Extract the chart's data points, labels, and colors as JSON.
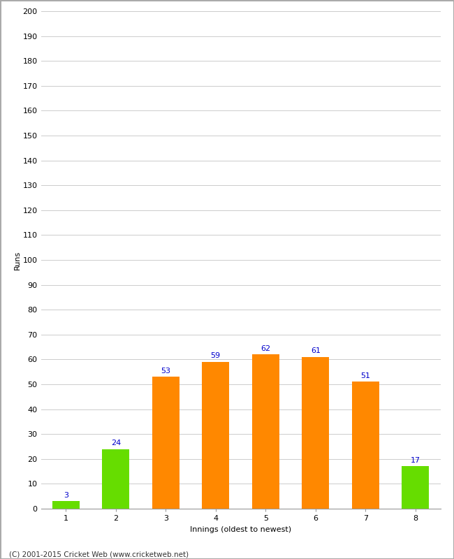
{
  "categories": [
    "1",
    "2",
    "3",
    "4",
    "5",
    "6",
    "7",
    "8"
  ],
  "values": [
    3,
    24,
    53,
    59,
    62,
    61,
    51,
    17
  ],
  "bar_colors": [
    "#66dd00",
    "#66dd00",
    "#ff8800",
    "#ff8800",
    "#ff8800",
    "#ff8800",
    "#ff8800",
    "#66dd00"
  ],
  "ylabel": "Runs",
  "xlabel": "Innings (oldest to newest)",
  "ylim": [
    0,
    200
  ],
  "yticks": [
    0,
    10,
    20,
    30,
    40,
    50,
    60,
    70,
    80,
    90,
    100,
    110,
    120,
    130,
    140,
    150,
    160,
    170,
    180,
    190,
    200
  ],
  "label_color": "#0000cc",
  "label_fontsize": 8,
  "footer": "(C) 2001-2015 Cricket Web (www.cricketweb.net)",
  "background_color": "#ffffff",
  "grid_color": "#cccccc",
  "bar_width": 0.55,
  "tick_fontsize": 8,
  "axis_label_fontsize": 8,
  "border_color": "#aaaaaa"
}
